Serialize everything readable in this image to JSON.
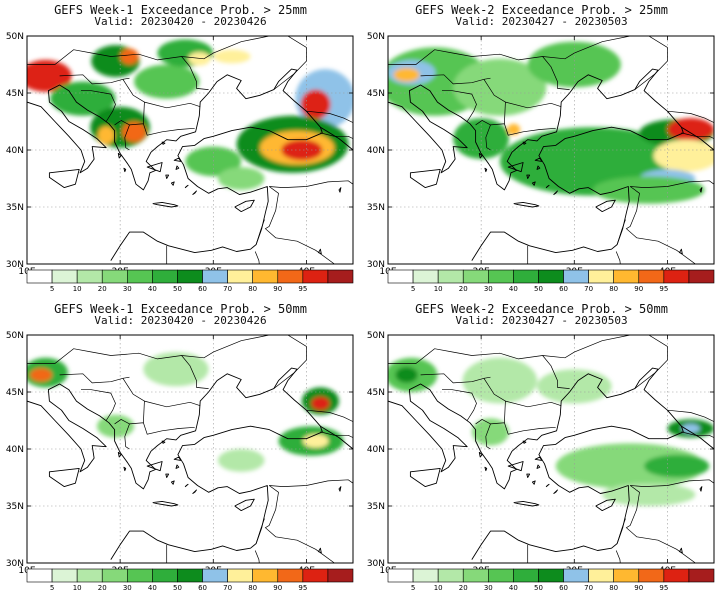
{
  "colorbar": {
    "labels": [
      "5",
      "10",
      "20",
      "30",
      "40",
      "50",
      "60",
      "70",
      "80",
      "90",
      "95"
    ],
    "colors": [
      "#ffffff",
      "#dcf4d6",
      "#b3e8a8",
      "#86d97a",
      "#56c553",
      "#2fae3b",
      "#0d8c1d",
      "#8fc2e8",
      "#fff09a",
      "#ffb830",
      "#f26818",
      "#dd2212",
      "#a61d1d"
    ]
  },
  "map": {
    "lat_ticks": [
      "50N",
      "45N",
      "40N",
      "35N",
      "30N"
    ],
    "lon_ticks": [
      "10E",
      "20E",
      "30E",
      "40E"
    ],
    "lon_range": [
      10,
      45
    ],
    "lat_range": [
      30,
      50
    ]
  },
  "panels": [
    {
      "title": "GEFS Week-1 Exceedance Prob. > 25mm",
      "valid": "Valid: 20230420 - 20230426",
      "blobs": [
        {
          "lon": 12,
          "lat": 46.5,
          "rx": 2.8,
          "ry": 1.4,
          "level": 11
        },
        {
          "lon": 19.5,
          "lat": 47.8,
          "rx": 2.6,
          "ry": 1.4,
          "level": 6
        },
        {
          "lon": 21,
          "lat": 48.2,
          "rx": 1.0,
          "ry": 0.7,
          "level": 10
        },
        {
          "lon": 16,
          "lat": 44.5,
          "rx": 3.5,
          "ry": 1.5,
          "level": 5
        },
        {
          "lon": 20,
          "lat": 42,
          "rx": 3.2,
          "ry": 1.8,
          "level": 6
        },
        {
          "lon": 21.5,
          "lat": 41.6,
          "rx": 1.3,
          "ry": 0.9,
          "level": 10
        },
        {
          "lon": 18.5,
          "lat": 41.3,
          "rx": 0.9,
          "ry": 0.8,
          "level": 9
        },
        {
          "lon": 25,
          "lat": 46,
          "rx": 3.5,
          "ry": 1.5,
          "level": 4
        },
        {
          "lon": 27,
          "lat": 48.5,
          "rx": 3.0,
          "ry": 1.2,
          "level": 5
        },
        {
          "lon": 28.5,
          "lat": 48,
          "rx": 1.2,
          "ry": 0.6,
          "level": 8
        },
        {
          "lon": 32,
          "lat": 48.2,
          "rx": 2.0,
          "ry": 0.6,
          "level": 8
        },
        {
          "lon": 42,
          "lat": 44.5,
          "rx": 3.2,
          "ry": 2.6,
          "level": 7
        },
        {
          "lon": 41,
          "lat": 44,
          "rx": 1.6,
          "ry": 1.3,
          "level": 11
        },
        {
          "lon": 38.5,
          "lat": 40.5,
          "rx": 6.0,
          "ry": 2.5,
          "level": 6
        },
        {
          "lon": 39,
          "lat": 40.2,
          "rx": 4.0,
          "ry": 1.5,
          "level": 9
        },
        {
          "lon": 39.5,
          "lat": 40,
          "rx": 2.2,
          "ry": 0.9,
          "level": 11
        },
        {
          "lon": 30,
          "lat": 39,
          "rx": 3.0,
          "ry": 1.3,
          "level": 4
        },
        {
          "lon": 33,
          "lat": 37.5,
          "rx": 2.5,
          "ry": 1.0,
          "level": 3
        }
      ]
    },
    {
      "title": "GEFS Week-2 Exceedance Prob. > 25mm",
      "valid": "Valid: 20230427 - 20230503",
      "blobs": [
        {
          "lon": 15,
          "lat": 46,
          "rx": 6.0,
          "ry": 3.0,
          "level": 4
        },
        {
          "lon": 12.5,
          "lat": 46.8,
          "rx": 2.6,
          "ry": 1.1,
          "level": 7
        },
        {
          "lon": 12,
          "lat": 46.6,
          "rx": 1.4,
          "ry": 0.6,
          "level": 9
        },
        {
          "lon": 22,
          "lat": 45.5,
          "rx": 5.0,
          "ry": 2.5,
          "level": 3
        },
        {
          "lon": 30,
          "lat": 47.5,
          "rx": 5.0,
          "ry": 2.0,
          "level": 4
        },
        {
          "lon": 20,
          "lat": 41,
          "rx": 3.0,
          "ry": 1.8,
          "level": 5
        },
        {
          "lon": 23.5,
          "lat": 41.8,
          "rx": 0.7,
          "ry": 0.5,
          "level": 9
        },
        {
          "lon": 32,
          "lat": 39,
          "rx": 10.0,
          "ry": 3.0,
          "level": 5
        },
        {
          "lon": 41,
          "lat": 41.5,
          "rx": 4.0,
          "ry": 1.2,
          "level": 6
        },
        {
          "lon": 42.5,
          "lat": 41.8,
          "rx": 2.5,
          "ry": 1.0,
          "level": 11
        },
        {
          "lon": 42,
          "lat": 39.5,
          "rx": 3.5,
          "ry": 1.4,
          "level": 8
        },
        {
          "lon": 40,
          "lat": 37.5,
          "rx": 3.0,
          "ry": 0.8,
          "level": 7
        },
        {
          "lon": 38,
          "lat": 36.5,
          "rx": 6.0,
          "ry": 1.2,
          "level": 4
        }
      ]
    },
    {
      "title": "GEFS Week-1 Exceedance Prob. > 50mm",
      "valid": "Valid: 20230420 - 20230426",
      "blobs": [
        {
          "lon": 12,
          "lat": 46.7,
          "rx": 2.4,
          "ry": 1.3,
          "level": 5
        },
        {
          "lon": 11.5,
          "lat": 46.5,
          "rx": 1.2,
          "ry": 0.6,
          "level": 10
        },
        {
          "lon": 19.5,
          "lat": 42,
          "rx": 2.0,
          "ry": 1.0,
          "level": 3
        },
        {
          "lon": 26,
          "lat": 47,
          "rx": 3.5,
          "ry": 1.5,
          "level": 2
        },
        {
          "lon": 41.5,
          "lat": 44.2,
          "rx": 2.0,
          "ry": 1.2,
          "level": 6
        },
        {
          "lon": 41.5,
          "lat": 44,
          "rx": 1.0,
          "ry": 0.6,
          "level": 11
        },
        {
          "lon": 40.5,
          "lat": 40.7,
          "rx": 3.5,
          "ry": 1.3,
          "level": 5
        },
        {
          "lon": 41,
          "lat": 40.7,
          "rx": 1.4,
          "ry": 0.6,
          "level": 8
        },
        {
          "lon": 33,
          "lat": 39,
          "rx": 2.5,
          "ry": 1.0,
          "level": 2
        }
      ]
    },
    {
      "title": "GEFS Week-2 Exceedance Prob. > 50mm",
      "valid": "Valid: 20230427 - 20230503",
      "blobs": [
        {
          "lon": 12.5,
          "lat": 46.5,
          "rx": 2.8,
          "ry": 1.5,
          "level": 4
        },
        {
          "lon": 12,
          "lat": 46.5,
          "rx": 1.2,
          "ry": 0.7,
          "level": 6
        },
        {
          "lon": 22,
          "lat": 46,
          "rx": 4.0,
          "ry": 2.0,
          "level": 2
        },
        {
          "lon": 30,
          "lat": 45.5,
          "rx": 4.0,
          "ry": 1.5,
          "level": 2
        },
        {
          "lon": 21,
          "lat": 41.5,
          "rx": 2.0,
          "ry": 1.2,
          "level": 3
        },
        {
          "lon": 36,
          "lat": 38.5,
          "rx": 8.0,
          "ry": 2.0,
          "level": 3
        },
        {
          "lon": 41,
          "lat": 38.5,
          "rx": 3.5,
          "ry": 1.0,
          "level": 5
        },
        {
          "lon": 42.5,
          "lat": 41.8,
          "rx": 2.5,
          "ry": 0.8,
          "level": 6
        },
        {
          "lon": 42.5,
          "lat": 41.8,
          "rx": 1.0,
          "ry": 0.4,
          "level": 7
        },
        {
          "lon": 38,
          "lat": 36,
          "rx": 5.0,
          "ry": 1.0,
          "level": 2
        }
      ]
    }
  ]
}
